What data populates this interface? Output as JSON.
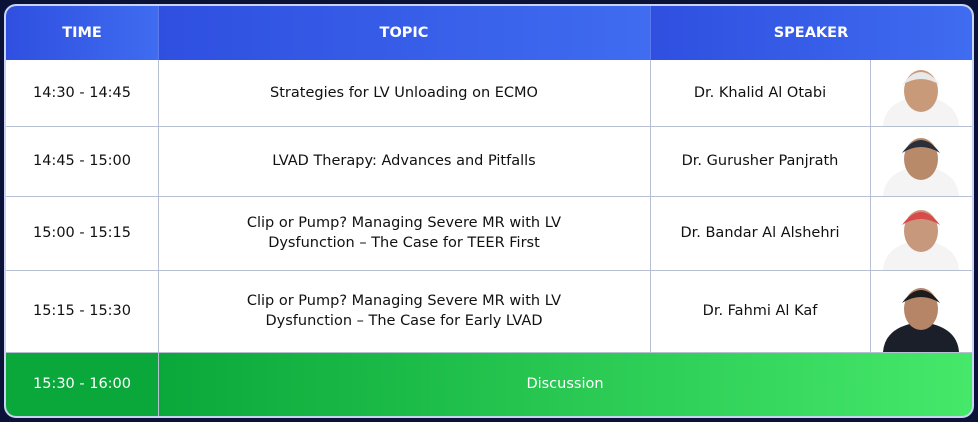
{
  "header": {
    "time": "TIME",
    "topic": "TOPIC",
    "speaker": "SPEAKER"
  },
  "rows": [
    {
      "time": "14:30 - 14:45",
      "topic": "Strategies for LV Unloading on ECMO",
      "speaker": "Dr. Khalid Al Otabi"
    },
    {
      "time": "14:45 - 15:00",
      "topic": "LVAD Therapy: Advances and Pitfalls",
      "speaker": "Dr. Gurusher Panjrath"
    },
    {
      "time": "15:00 - 15:15",
      "topic": "Clip or Pump? Managing Severe MR with LV Dysfunction – The Case for TEER First",
      "speaker": "Dr. Bandar Al Alshehri"
    },
    {
      "time": "15:15 - 15:30",
      "topic": "Clip or Pump? Managing Severe MR with LV Dysfunction – The Case for Early LVAD",
      "speaker": "Dr. Fahmi Al Kaf"
    }
  ],
  "discussion": {
    "time": "15:30 - 16:00",
    "label": "Discussion"
  }
}
